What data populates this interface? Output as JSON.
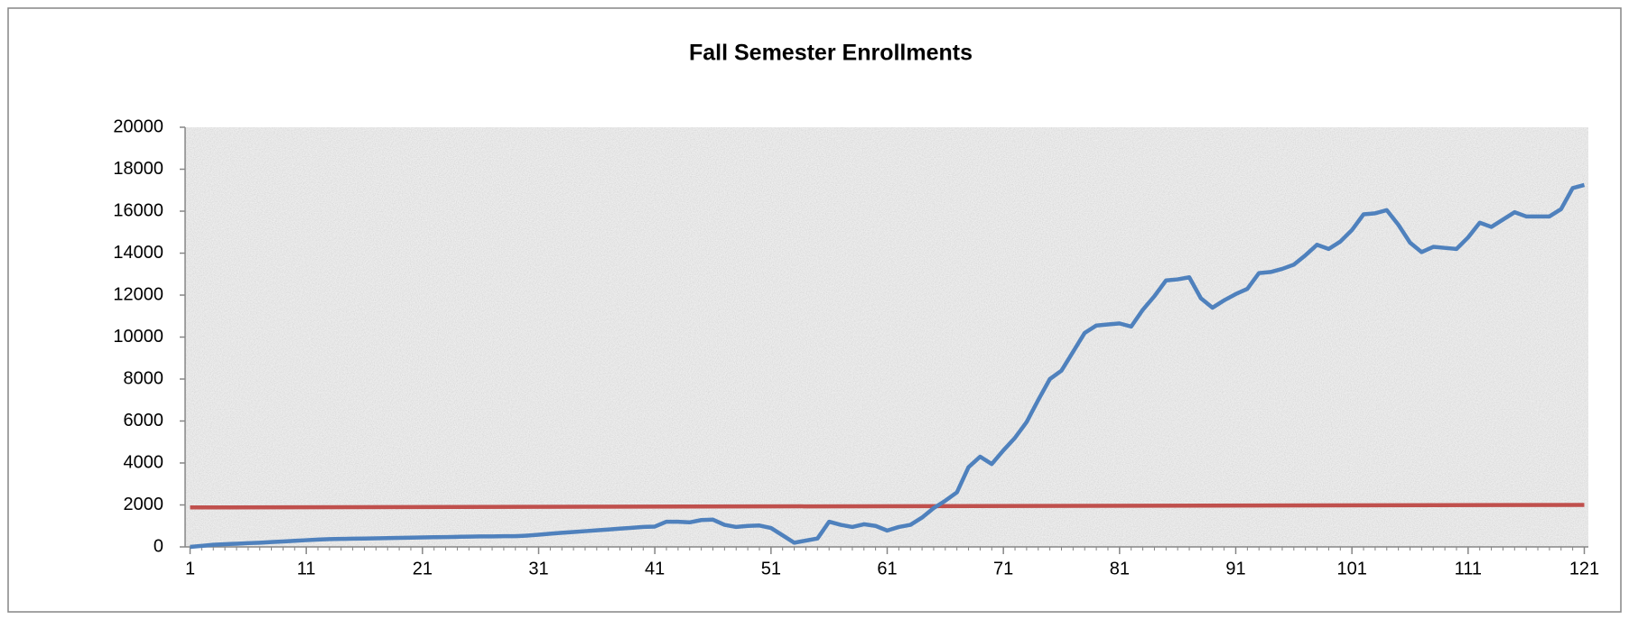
{
  "chart_data": {
    "type": "line",
    "title": "Fall Semester Enrollments",
    "x": [
      1,
      2,
      3,
      4,
      5,
      6,
      7,
      8,
      9,
      10,
      11,
      12,
      13,
      14,
      15,
      16,
      17,
      18,
      19,
      20,
      21,
      22,
      23,
      24,
      25,
      26,
      27,
      28,
      29,
      30,
      31,
      32,
      33,
      34,
      35,
      36,
      37,
      38,
      39,
      40,
      41,
      42,
      43,
      44,
      45,
      46,
      47,
      48,
      49,
      50,
      51,
      52,
      53,
      54,
      55,
      56,
      57,
      58,
      59,
      60,
      61,
      62,
      63,
      64,
      65,
      66,
      67,
      68,
      69,
      70,
      71,
      72,
      73,
      74,
      75,
      76,
      77,
      78,
      79,
      80,
      81,
      82,
      83,
      84,
      85,
      86,
      87,
      88,
      89,
      90,
      91,
      92,
      93,
      94,
      95,
      96,
      97,
      98,
      99,
      100,
      101,
      102,
      103,
      104,
      105,
      106,
      107,
      108,
      109,
      110,
      111,
      112,
      113,
      114,
      115,
      116,
      117,
      118,
      119,
      120,
      121
    ],
    "series": [
      {
        "color": "#4f81bd",
        "values": [
          0,
          50,
          100,
          130,
          150,
          180,
          200,
          230,
          260,
          290,
          320,
          350,
          370,
          380,
          390,
          400,
          410,
          420,
          430,
          440,
          450,
          460,
          470,
          480,
          490,
          500,
          500,
          510,
          510,
          540,
          580,
          630,
          670,
          710,
          750,
          790,
          830,
          870,
          910,
          950,
          970,
          1200,
          1200,
          1170,
          1280,
          1300,
          1050,
          950,
          1000,
          1020,
          900,
          550,
          200,
          300,
          400,
          1200,
          1050,
          950,
          1080,
          1000,
          780,
          950,
          1050,
          1400,
          1850,
          2200,
          2600,
          3800,
          4300,
          3950,
          4600,
          5200,
          5950,
          7000,
          8000,
          8400,
          9300,
          10200,
          10550,
          10600,
          10650,
          10500,
          11300,
          11950,
          12700,
          12750,
          12850,
          11850,
          11400,
          11750,
          12050,
          12300,
          13050,
          13100,
          13250,
          13450,
          13900,
          14400,
          14200,
          14550,
          15100,
          15850,
          15900,
          16050,
          15350,
          14500,
          14050,
          14300,
          14250,
          14200,
          14750,
          15450,
          15250,
          15600,
          15950,
          15750,
          15750,
          15750,
          16100,
          17100,
          17250
        ]
      },
      {
        "color": "#c0504d",
        "x": [
          1,
          121
        ],
        "values": [
          1880,
          2000
        ]
      }
    ],
    "xlim": [
      1,
      121
    ],
    "xticks": [
      1,
      11,
      21,
      31,
      41,
      51,
      61,
      71,
      81,
      91,
      101,
      111,
      121
    ],
    "ylim": [
      0,
      20000
    ],
    "yticks": [
      0,
      2000,
      4000,
      6000,
      8000,
      10000,
      12000,
      14000,
      16000,
      18000,
      20000
    ]
  }
}
